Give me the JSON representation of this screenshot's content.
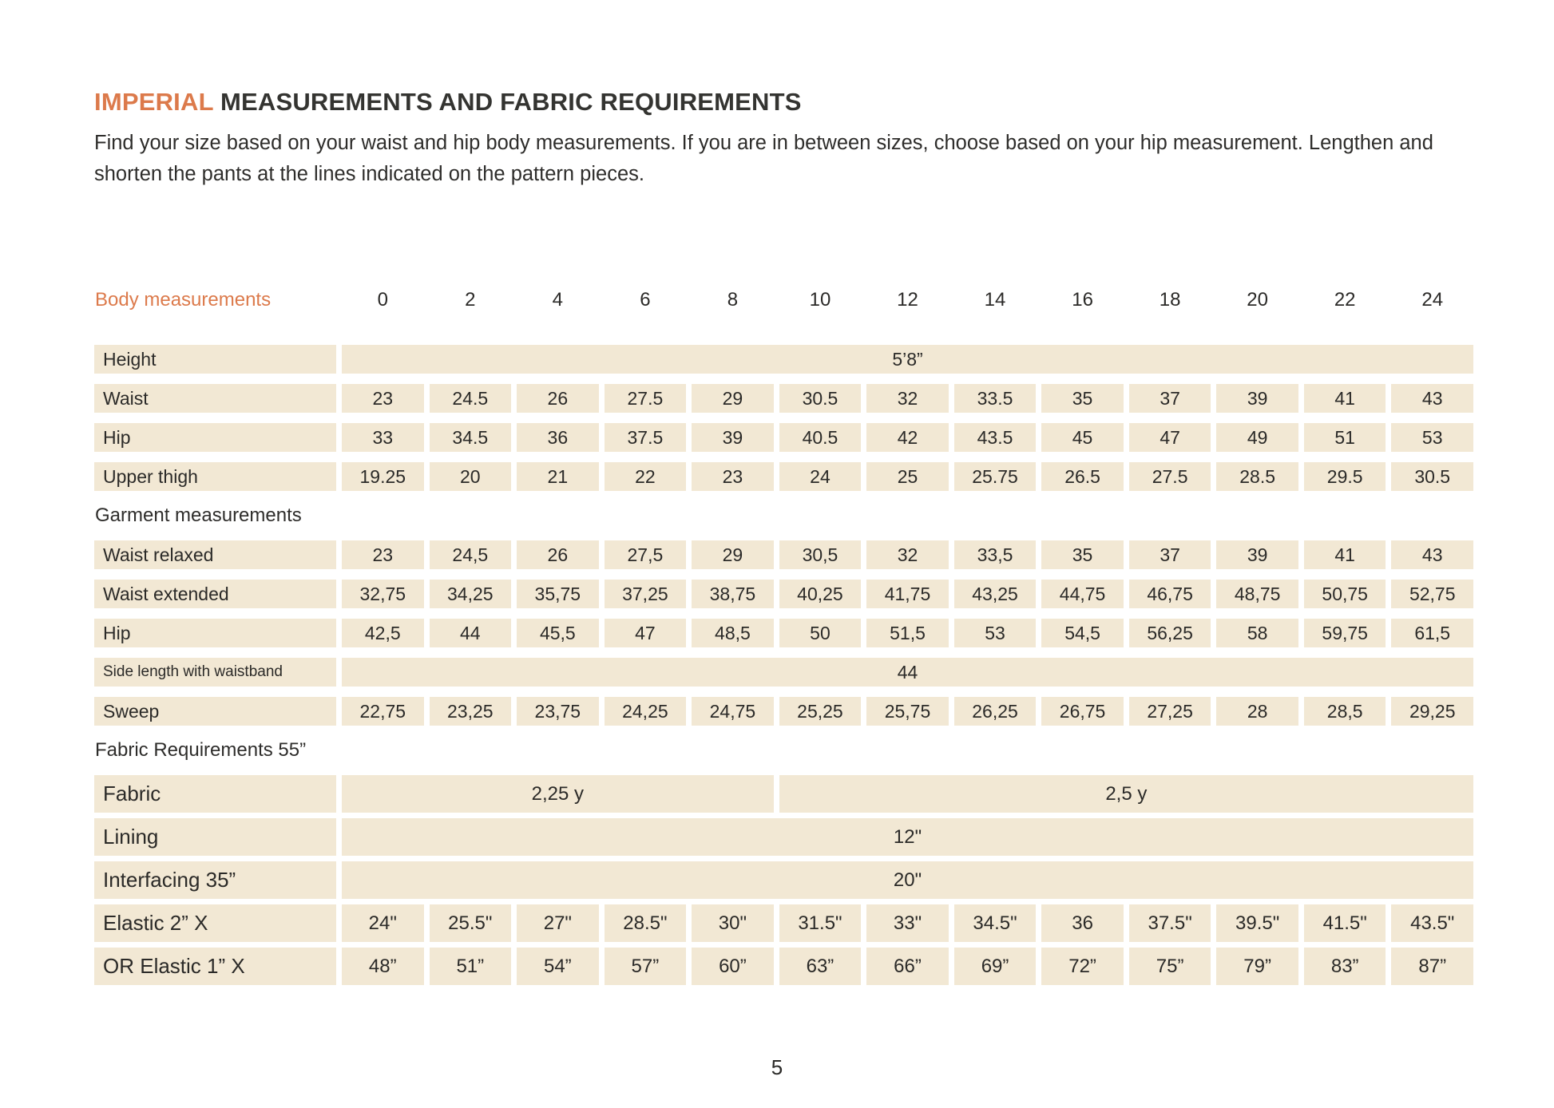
{
  "page": {
    "title_accent": "IMPERIAL",
    "title_rest": " MEASUREMENTS AND FABRIC REQUIREMENTS",
    "subtitle": "Find your size based on your waist and hip body measurements. If you are in between sizes, choose based on your hip measurement. Lengthen and shorten the pants at the lines indicated on the pattern pieces.",
    "page_number": "5"
  },
  "colors": {
    "accent_orange": "#DC7A4B",
    "cell_background": "#F2E8D4",
    "text": "#2B2A28",
    "page_background": "#FFFFFF"
  },
  "table": {
    "header": {
      "label": "Body measurements",
      "sizes": [
        "0",
        "2",
        "4",
        "6",
        "8",
        "10",
        "12",
        "14",
        "16",
        "18",
        "20",
        "22",
        "24"
      ]
    },
    "rows": [
      {
        "type": "span",
        "label": "Height",
        "value": "5’8”"
      },
      {
        "type": "values",
        "label": "Waist",
        "values": [
          "23",
          "24.5",
          "26",
          "27.5",
          "29",
          "30.5",
          "32",
          "33.5",
          "35",
          "37",
          "39",
          "41",
          "43"
        ]
      },
      {
        "type": "values",
        "label": "Hip",
        "values": [
          "33",
          "34.5",
          "36",
          "37.5",
          "39",
          "40.5",
          "42",
          "43.5",
          "45",
          "47",
          "49",
          "51",
          "53"
        ]
      },
      {
        "type": "values",
        "label": "Upper thigh",
        "values": [
          "19.25",
          "20",
          "21",
          "22",
          "23",
          "24",
          "25",
          "25.75",
          "26.5",
          "27.5",
          "28.5",
          "29.5",
          "30.5"
        ]
      },
      {
        "type": "section",
        "label": "Garment measurements"
      },
      {
        "type": "values",
        "label": "Waist relaxed",
        "values": [
          "23",
          "24,5",
          "26",
          "27,5",
          "29",
          "30,5",
          "32",
          "33,5",
          "35",
          "37",
          "39",
          "41",
          "43"
        ]
      },
      {
        "type": "values",
        "label": "Waist extended",
        "values": [
          "32,75",
          "34,25",
          "35,75",
          "37,25",
          "38,75",
          "40,25",
          "41,75",
          "43,25",
          "44,75",
          "46,75",
          "48,75",
          "50,75",
          "52,75"
        ]
      },
      {
        "type": "values",
        "label": "Hip",
        "values": [
          "42,5",
          "44",
          "45,5",
          "47",
          "48,5",
          "50",
          "51,5",
          "53",
          "54,5",
          "56,25",
          "58",
          "59,75",
          "61,5"
        ]
      },
      {
        "type": "span",
        "label": "Side length with waistband",
        "small": true,
        "value": "44"
      },
      {
        "type": "values",
        "label": "Sweep",
        "values": [
          "22,75",
          "23,25",
          "23,75",
          "24,25",
          "24,75",
          "25,25",
          "25,75",
          "26,25",
          "26,75",
          "27,25",
          "28",
          "28,5",
          "29,25"
        ]
      },
      {
        "type": "section",
        "label": "Fabric Requirements 55”"
      },
      {
        "type": "split",
        "label": "Fabric",
        "large": true,
        "segments": [
          {
            "cols": 5,
            "value": "2,25 y"
          },
          {
            "cols": 8,
            "value": "2,5 y"
          }
        ]
      },
      {
        "type": "span",
        "label": "Lining",
        "large": true,
        "value": "12\""
      },
      {
        "type": "span",
        "label": "Interfacing 35”",
        "large": true,
        "value": "20\""
      },
      {
        "type": "values",
        "label": "Elastic 2” X",
        "large": true,
        "values": [
          "24\"",
          "25.5\"",
          "27\"",
          "28.5\"",
          "30\"",
          "31.5\"",
          "33\"",
          "34.5\"",
          "36",
          "37.5\"",
          "39.5\"",
          "41.5\"",
          "43.5\""
        ]
      },
      {
        "type": "values",
        "label": "OR Elastic 1”  X",
        "large": true,
        "values": [
          "48”",
          "51”",
          "54”",
          "57”",
          "60”",
          "63”",
          "66”",
          "69”",
          "72”",
          "75”",
          "79”",
          "83”",
          "87”"
        ]
      }
    ]
  }
}
